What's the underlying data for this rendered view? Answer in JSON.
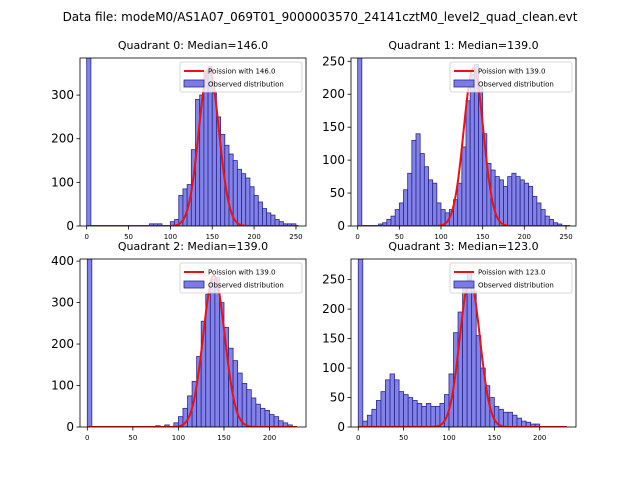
{
  "figure": {
    "title": "Data file: modeM0/AS1A07_069T01_9000003570_24141cztM0_level2_quad_clean.evt"
  },
  "colors": {
    "hist_fill": "#7b7be8",
    "hist_edge": "#2a2a8a",
    "poisson_line": "#ee1111",
    "axes": "#000000"
  },
  "chart_data": [
    {
      "type": "bar",
      "title": "Quadrant 0: Median=146.0",
      "xlim": [
        -8,
        262
      ],
      "ylim": [
        0,
        385
      ],
      "xticks": [
        0,
        50,
        100,
        150,
        200,
        250
      ],
      "yticks": [
        0,
        100,
        200,
        300
      ],
      "bin_width": 5,
      "legend": [
        "Poission with 146.0",
        "Observed distribution"
      ],
      "bins": [
        {
          "x": 0,
          "y": 385
        },
        {
          "x": 75,
          "y": 5
        },
        {
          "x": 80,
          "y": 5
        },
        {
          "x": 85,
          "y": 5
        },
        {
          "x": 100,
          "y": 10
        },
        {
          "x": 105,
          "y": 15
        },
        {
          "x": 110,
          "y": 70
        },
        {
          "x": 115,
          "y": 85
        },
        {
          "x": 120,
          "y": 95
        },
        {
          "x": 125,
          "y": 175
        },
        {
          "x": 130,
          "y": 290
        },
        {
          "x": 135,
          "y": 300
        },
        {
          "x": 140,
          "y": 355
        },
        {
          "x": 145,
          "y": 365
        },
        {
          "x": 150,
          "y": 305
        },
        {
          "x": 155,
          "y": 250
        },
        {
          "x": 160,
          "y": 210
        },
        {
          "x": 165,
          "y": 185
        },
        {
          "x": 170,
          "y": 165
        },
        {
          "x": 175,
          "y": 150
        },
        {
          "x": 180,
          "y": 130
        },
        {
          "x": 185,
          "y": 120
        },
        {
          "x": 190,
          "y": 110
        },
        {
          "x": 195,
          "y": 90
        },
        {
          "x": 200,
          "y": 70
        },
        {
          "x": 205,
          "y": 55
        },
        {
          "x": 210,
          "y": 40
        },
        {
          "x": 215,
          "y": 30
        },
        {
          "x": 220,
          "y": 25
        },
        {
          "x": 225,
          "y": 15
        },
        {
          "x": 230,
          "y": 10
        },
        {
          "x": 235,
          "y": 5
        },
        {
          "x": 240,
          "y": 5
        },
        {
          "x": 245,
          "y": 5
        }
      ],
      "poisson": {
        "mean": 146.0,
        "peak": 360,
        "x_range": [
          0,
          253
        ]
      }
    },
    {
      "type": "bar",
      "title": "Quadrant 1: Median=139.0",
      "xlim": [
        -8,
        262
      ],
      "ylim": [
        0,
        255
      ],
      "xticks": [
        0,
        50,
        100,
        150,
        200,
        250
      ],
      "yticks": [
        0,
        50,
        100,
        150,
        200,
        250
      ],
      "bin_width": 5,
      "legend": [
        "Poission with 139.0",
        "Observed distribution"
      ],
      "bins": [
        {
          "x": 0,
          "y": 255
        },
        {
          "x": 25,
          "y": 3
        },
        {
          "x": 30,
          "y": 5
        },
        {
          "x": 35,
          "y": 10
        },
        {
          "x": 40,
          "y": 15
        },
        {
          "x": 45,
          "y": 25
        },
        {
          "x": 50,
          "y": 35
        },
        {
          "x": 55,
          "y": 55
        },
        {
          "x": 60,
          "y": 80
        },
        {
          "x": 65,
          "y": 130
        },
        {
          "x": 70,
          "y": 140
        },
        {
          "x": 75,
          "y": 110
        },
        {
          "x": 80,
          "y": 90
        },
        {
          "x": 85,
          "y": 70
        },
        {
          "x": 90,
          "y": 65
        },
        {
          "x": 95,
          "y": 35
        },
        {
          "x": 100,
          "y": 25
        },
        {
          "x": 105,
          "y": 20
        },
        {
          "x": 110,
          "y": 25
        },
        {
          "x": 115,
          "y": 40
        },
        {
          "x": 120,
          "y": 65
        },
        {
          "x": 125,
          "y": 120
        },
        {
          "x": 130,
          "y": 190
        },
        {
          "x": 135,
          "y": 230
        },
        {
          "x": 140,
          "y": 245
        },
        {
          "x": 145,
          "y": 210
        },
        {
          "x": 150,
          "y": 140
        },
        {
          "x": 155,
          "y": 95
        },
        {
          "x": 160,
          "y": 85
        },
        {
          "x": 165,
          "y": 75
        },
        {
          "x": 170,
          "y": 70
        },
        {
          "x": 175,
          "y": 60
        },
        {
          "x": 180,
          "y": 75
        },
        {
          "x": 185,
          "y": 80
        },
        {
          "x": 190,
          "y": 75
        },
        {
          "x": 195,
          "y": 70
        },
        {
          "x": 200,
          "y": 65
        },
        {
          "x": 205,
          "y": 60
        },
        {
          "x": 210,
          "y": 45
        },
        {
          "x": 215,
          "y": 35
        },
        {
          "x": 220,
          "y": 25
        },
        {
          "x": 225,
          "y": 15
        },
        {
          "x": 230,
          "y": 10
        },
        {
          "x": 235,
          "y": 5
        },
        {
          "x": 240,
          "y": 3
        }
      ],
      "poisson": {
        "mean": 139.0,
        "peak": 240,
        "x_range": [
          0,
          255
        ]
      }
    },
    {
      "type": "bar",
      "title": "Quadrant 2: Median=139.0",
      "xlim": [
        -8,
        240
      ],
      "ylim": [
        0,
        405
      ],
      "xticks": [
        0,
        50,
        100,
        150,
        200
      ],
      "yticks": [
        0,
        100,
        200,
        300,
        400
      ],
      "bin_width": 5,
      "legend": [
        "Poission with 139.0",
        "Observed distribution"
      ],
      "bins": [
        {
          "x": 0,
          "y": 405
        },
        {
          "x": 75,
          "y": 3
        },
        {
          "x": 85,
          "y": 5
        },
        {
          "x": 95,
          "y": 10
        },
        {
          "x": 100,
          "y": 25
        },
        {
          "x": 105,
          "y": 45
        },
        {
          "x": 110,
          "y": 75
        },
        {
          "x": 115,
          "y": 110
        },
        {
          "x": 120,
          "y": 170
        },
        {
          "x": 125,
          "y": 255
        },
        {
          "x": 130,
          "y": 320
        },
        {
          "x": 135,
          "y": 355
        },
        {
          "x": 140,
          "y": 360
        },
        {
          "x": 145,
          "y": 300
        },
        {
          "x": 150,
          "y": 240
        },
        {
          "x": 155,
          "y": 190
        },
        {
          "x": 160,
          "y": 160
        },
        {
          "x": 165,
          "y": 130
        },
        {
          "x": 170,
          "y": 105
        },
        {
          "x": 175,
          "y": 90
        },
        {
          "x": 180,
          "y": 70
        },
        {
          "x": 185,
          "y": 55
        },
        {
          "x": 190,
          "y": 45
        },
        {
          "x": 195,
          "y": 40
        },
        {
          "x": 200,
          "y": 30
        },
        {
          "x": 205,
          "y": 25
        },
        {
          "x": 210,
          "y": 15
        },
        {
          "x": 215,
          "y": 10
        },
        {
          "x": 220,
          "y": 5
        }
      ],
      "poisson": {
        "mean": 139.0,
        "peak": 365,
        "x_range": [
          0,
          230
        ]
      }
    },
    {
      "type": "bar",
      "title": "Quadrant 3: Median=123.0",
      "xlim": [
        -8,
        240
      ],
      "ylim": [
        0,
        285
      ],
      "xticks": [
        0,
        50,
        100,
        150,
        200
      ],
      "yticks": [
        0,
        50,
        100,
        150,
        200,
        250
      ],
      "bin_width": 5,
      "legend": [
        "Poission with 123.0",
        "Observed distribution"
      ],
      "bins": [
        {
          "x": 0,
          "y": 285
        },
        {
          "x": 5,
          "y": 10
        },
        {
          "x": 10,
          "y": 20
        },
        {
          "x": 15,
          "y": 30
        },
        {
          "x": 20,
          "y": 45
        },
        {
          "x": 25,
          "y": 60
        },
        {
          "x": 30,
          "y": 80
        },
        {
          "x": 35,
          "y": 90
        },
        {
          "x": 40,
          "y": 80
        },
        {
          "x": 45,
          "y": 60
        },
        {
          "x": 50,
          "y": 55
        },
        {
          "x": 55,
          "y": 50
        },
        {
          "x": 60,
          "y": 45
        },
        {
          "x": 65,
          "y": 40
        },
        {
          "x": 70,
          "y": 35
        },
        {
          "x": 75,
          "y": 40
        },
        {
          "x": 80,
          "y": 35
        },
        {
          "x": 85,
          "y": 35
        },
        {
          "x": 90,
          "y": 40
        },
        {
          "x": 95,
          "y": 55
        },
        {
          "x": 100,
          "y": 90
        },
        {
          "x": 105,
          "y": 160
        },
        {
          "x": 110,
          "y": 195
        },
        {
          "x": 115,
          "y": 240
        },
        {
          "x": 120,
          "y": 260
        },
        {
          "x": 125,
          "y": 230
        },
        {
          "x": 130,
          "y": 155
        },
        {
          "x": 135,
          "y": 100
        },
        {
          "x": 140,
          "y": 70
        },
        {
          "x": 145,
          "y": 50
        },
        {
          "x": 150,
          "y": 35
        },
        {
          "x": 155,
          "y": 30
        },
        {
          "x": 160,
          "y": 25
        },
        {
          "x": 165,
          "y": 25
        },
        {
          "x": 170,
          "y": 20
        },
        {
          "x": 175,
          "y": 15
        },
        {
          "x": 180,
          "y": 10
        },
        {
          "x": 185,
          "y": 8
        },
        {
          "x": 190,
          "y": 5
        },
        {
          "x": 195,
          "y": 5
        }
      ],
      "poisson": {
        "mean": 123.0,
        "peak": 250,
        "x_range": [
          0,
          230
        ]
      }
    }
  ]
}
